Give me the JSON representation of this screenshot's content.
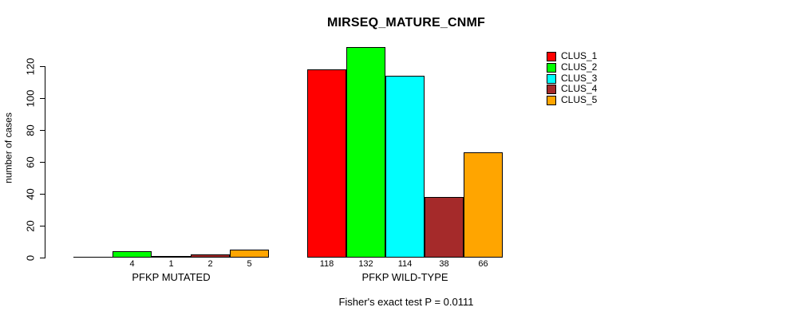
{
  "chart_data": {
    "type": "bar",
    "title": "MIRSEQ_MATURE_CNMF",
    "ylabel": "number of cases",
    "xlabel": "",
    "annotation": "Fisher's exact test P = 0.0111",
    "categories": [
      "PFKP MUTATED",
      "PFKP WILD-TYPE"
    ],
    "series": [
      {
        "name": "CLUS_1",
        "color": "#FF0000",
        "values": [
          0,
          118
        ]
      },
      {
        "name": "CLUS_2",
        "color": "#00FF00",
        "values": [
          4,
          132
        ]
      },
      {
        "name": "CLUS_3",
        "color": "#00FFFF",
        "values": [
          1,
          114
        ]
      },
      {
        "name": "CLUS_4",
        "color": "#A52A2A",
        "values": [
          2,
          38
        ]
      },
      {
        "name": "CLUS_5",
        "color": "#FFA500",
        "values": [
          5,
          66
        ]
      }
    ],
    "bar_value_labels": [
      [
        "",
        "4",
        "1",
        "2",
        "5"
      ],
      [
        "118",
        "132",
        "114",
        "38",
        "66"
      ]
    ],
    "yticks": [
      0,
      20,
      40,
      60,
      80,
      100,
      120
    ],
    "ylim": [
      0,
      132
    ],
    "grid": false,
    "legend_position": "right-inside",
    "legend_labels": [
      "CLUS_1",
      "CLUS_2",
      "CLUS_3",
      "CLUS_4",
      "CLUS_5"
    ],
    "axis_color": "#000000",
    "background_color": "#FFFFFF"
  }
}
